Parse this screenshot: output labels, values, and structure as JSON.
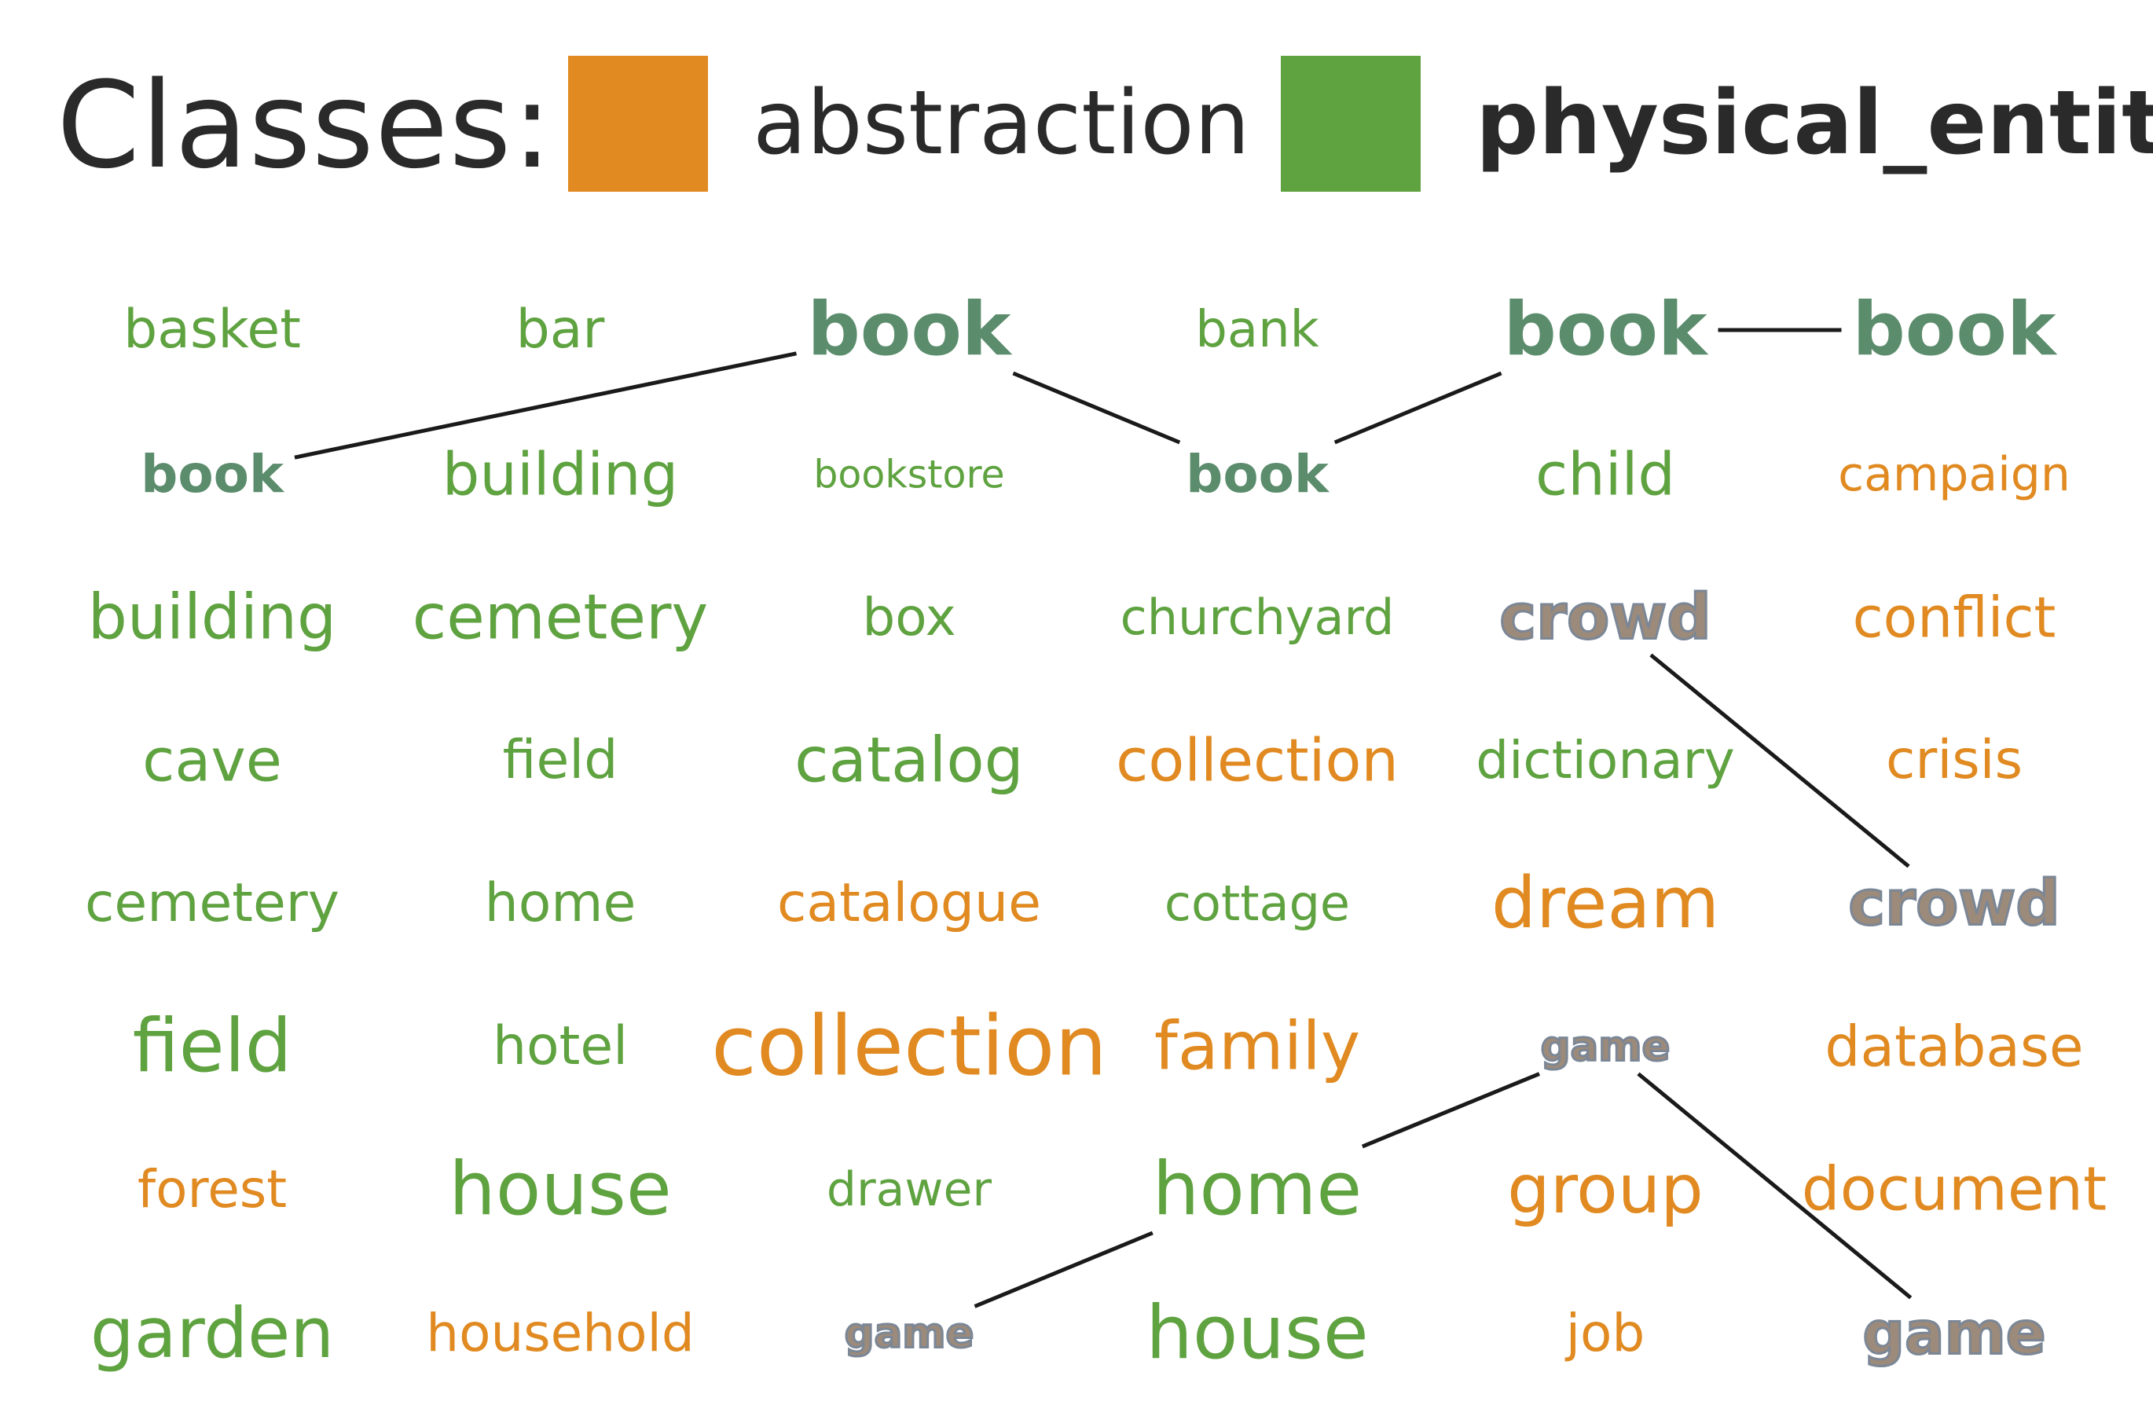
{
  "legend": {
    "title": "Classes:",
    "classes": [
      {
        "label": "abstraction",
        "color": "#e08a21"
      },
      {
        "label": "physical_entity",
        "color": "#5fa240"
      }
    ]
  },
  "grid": {
    "rows": [
      [
        {
          "text": "basket",
          "cls": "physical",
          "size": 72
        },
        {
          "text": "bar",
          "cls": "physical",
          "size": 72
        },
        {
          "text": "book",
          "cls": "highlight",
          "size": 100
        },
        {
          "text": "bank",
          "cls": "physical",
          "size": 68
        },
        {
          "text": "book",
          "cls": "highlight",
          "size": 100
        },
        {
          "text": "book",
          "cls": "highlight",
          "size": 100
        }
      ],
      [
        {
          "text": "book",
          "cls": "highlight",
          "size": 70
        },
        {
          "text": "building",
          "cls": "physical",
          "size": 80
        },
        {
          "text": "bookstore",
          "cls": "physical",
          "size": 52
        },
        {
          "text": "book",
          "cls": "highlight",
          "size": 70
        },
        {
          "text": "child",
          "cls": "physical",
          "size": 80
        },
        {
          "text": "campaign",
          "cls": "abstraction",
          "size": 64
        }
      ],
      [
        {
          "text": "building",
          "cls": "physical",
          "size": 84
        },
        {
          "text": "cemetery",
          "cls": "physical",
          "size": 84
        },
        {
          "text": "box",
          "cls": "physical",
          "size": 70
        },
        {
          "text": "churchyard",
          "cls": "physical",
          "size": 66
        },
        {
          "text": "crowd",
          "cls": "highlight-alt",
          "size": 84
        },
        {
          "text": "conflict",
          "cls": "abstraction",
          "size": 76
        }
      ],
      [
        {
          "text": "cave",
          "cls": "physical",
          "size": 80
        },
        {
          "text": "field",
          "cls": "physical",
          "size": 72
        },
        {
          "text": "catalog",
          "cls": "physical",
          "size": 84
        },
        {
          "text": "collection",
          "cls": "abstraction",
          "size": 80
        },
        {
          "text": "dictionary",
          "cls": "physical",
          "size": 70
        },
        {
          "text": "crisis",
          "cls": "abstraction",
          "size": 72
        }
      ],
      [
        {
          "text": "cemetery",
          "cls": "physical",
          "size": 72
        },
        {
          "text": "home",
          "cls": "physical",
          "size": 72
        },
        {
          "text": "catalogue",
          "cls": "abstraction",
          "size": 72
        },
        {
          "text": "cottage",
          "cls": "physical",
          "size": 66
        },
        {
          "text": "dream",
          "cls": "abstraction",
          "size": 96
        },
        {
          "text": "crowd",
          "cls": "highlight-alt",
          "size": 84
        }
      ],
      [
        {
          "text": "field",
          "cls": "physical",
          "size": 100
        },
        {
          "text": "hotel",
          "cls": "physical",
          "size": 72
        },
        {
          "text": "collection",
          "cls": "abstraction",
          "size": 112
        },
        {
          "text": "family",
          "cls": "abstraction",
          "size": 90
        },
        {
          "text": "game",
          "cls": "highlight-alt",
          "size": 56
        },
        {
          "text": "database",
          "cls": "abstraction",
          "size": 76
        }
      ],
      [
        {
          "text": "forest",
          "cls": "abstraction",
          "size": 70
        },
        {
          "text": "house",
          "cls": "physical",
          "size": 100
        },
        {
          "text": "drawer",
          "cls": "physical",
          "size": 64
        },
        {
          "text": "home",
          "cls": "physical",
          "size": 100
        },
        {
          "text": "group",
          "cls": "abstraction",
          "size": 92
        },
        {
          "text": "document",
          "cls": "abstraction",
          "size": 82
        }
      ],
      [
        {
          "text": "garden",
          "cls": "physical",
          "size": 94
        },
        {
          "text": "household",
          "cls": "abstraction",
          "size": 70
        },
        {
          "text": "game",
          "cls": "highlight-alt",
          "size": 56
        },
        {
          "text": "house",
          "cls": "physical",
          "size": 100
        },
        {
          "text": "job",
          "cls": "abstraction",
          "size": 70
        },
        {
          "text": "game",
          "cls": "highlight-alt",
          "size": 80
        }
      ]
    ]
  }
}
